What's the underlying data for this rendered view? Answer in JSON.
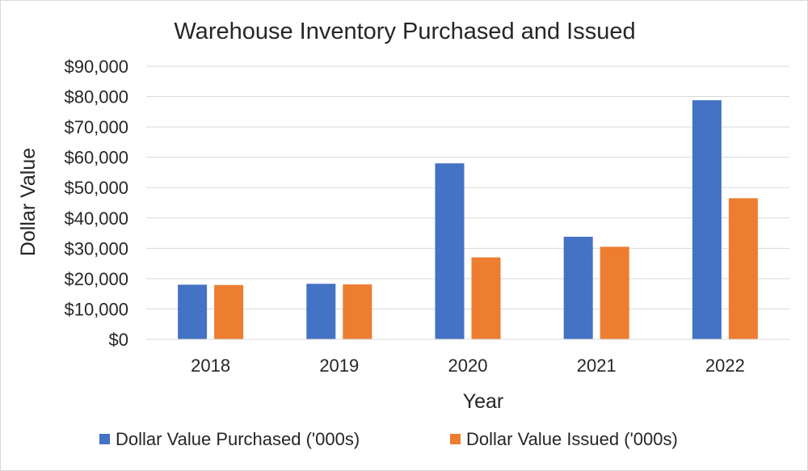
{
  "chart_data": {
    "type": "bar",
    "title": "Warehouse Inventory Purchased and Issued",
    "xlabel": "Year",
    "ylabel": "Dollar Value",
    "categories": [
      "2018",
      "2019",
      "2020",
      "2021",
      "2022"
    ],
    "series": [
      {
        "name": "Dollar Value Purchased ('000s)",
        "color": "#4472C4",
        "values": [
          18000,
          18300,
          58000,
          33800,
          78800
        ]
      },
      {
        "name": "Dollar Value Issued ('000s)",
        "color": "#ED7D31",
        "values": [
          17900,
          18100,
          27000,
          30500,
          46500
        ]
      }
    ],
    "ylim": [
      0,
      90000
    ],
    "yticks": [
      0,
      10000,
      20000,
      30000,
      40000,
      50000,
      60000,
      70000,
      80000,
      90000
    ],
    "ytick_labels": [
      "$0",
      "$10,000",
      "$20,000",
      "$30,000",
      "$40,000",
      "$50,000",
      "$60,000",
      "$70,000",
      "$80,000",
      "$90,000"
    ],
    "grid": true,
    "gridline_color": "#d9d9d9",
    "legend": "bottom"
  }
}
